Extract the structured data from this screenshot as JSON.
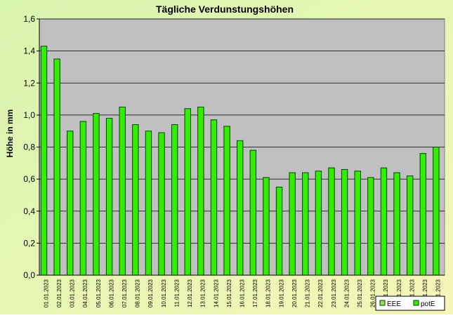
{
  "chart_data": {
    "type": "bar",
    "title": "Tägliche Verdunstungshöhen",
    "y_label": "Höhe in mm",
    "categories": [
      "01.01.2023",
      "02.01.2023",
      "03.01.2023",
      "04.01.2023",
      "05.01.2023",
      "06.01.2023",
      "07.01.2023",
      "08.01.2023",
      "09.01.2023",
      "10.01.2023",
      "11.01.2023",
      "12.01.2023",
      "13.01.2023",
      "14.01.2023",
      "15.01.2023",
      "16.01.2023",
      "17.01.2023",
      "18.01.2023",
      "19.01.2023",
      "20.01.2023",
      "21.01.2023",
      "22.01.2023",
      "23.01.2023",
      "24.01.2023",
      "25.01.2023",
      "26.01.2023",
      "27.01.2023",
      "28.01.2023",
      "29.01.2023",
      "30.01.2023",
      "31.01.2023"
    ],
    "series": [
      {
        "name": "EEE",
        "color": "#99dd55",
        "values": [
          null,
          null,
          null,
          null,
          null,
          null,
          null,
          null,
          null,
          null,
          null,
          null,
          null,
          null,
          null,
          null,
          null,
          null,
          null,
          null,
          null,
          null,
          null,
          null,
          null,
          null,
          null,
          null,
          null,
          null,
          null
        ]
      },
      {
        "name": "potE",
        "color": "#33ee00",
        "values": [
          1.43,
          1.35,
          0.9,
          0.96,
          1.01,
          0.98,
          1.05,
          0.94,
          0.9,
          0.89,
          0.94,
          1.04,
          1.05,
          0.97,
          0.93,
          0.84,
          0.78,
          0.61,
          0.55,
          0.64,
          0.64,
          0.65,
          0.67,
          0.66,
          0.65,
          0.61,
          0.67,
          0.64,
          0.62,
          0.76,
          0.8
        ]
      }
    ],
    "ylim": [
      0,
      1.6
    ],
    "yticks": [
      {
        "value": 0,
        "label": "0,0"
      },
      {
        "value": 0.2,
        "label": "0,2"
      },
      {
        "value": 0.4,
        "label": "0,4"
      },
      {
        "value": 0.6,
        "label": "0,6"
      },
      {
        "value": 0.8,
        "label": "0,8"
      },
      {
        "value": 1,
        "label": "1,0"
      },
      {
        "value": 1.2,
        "label": "1,2"
      },
      {
        "value": 1.4,
        "label": "1,4"
      },
      {
        "value": 1.6,
        "label": "1,6"
      }
    ],
    "grid": true
  }
}
